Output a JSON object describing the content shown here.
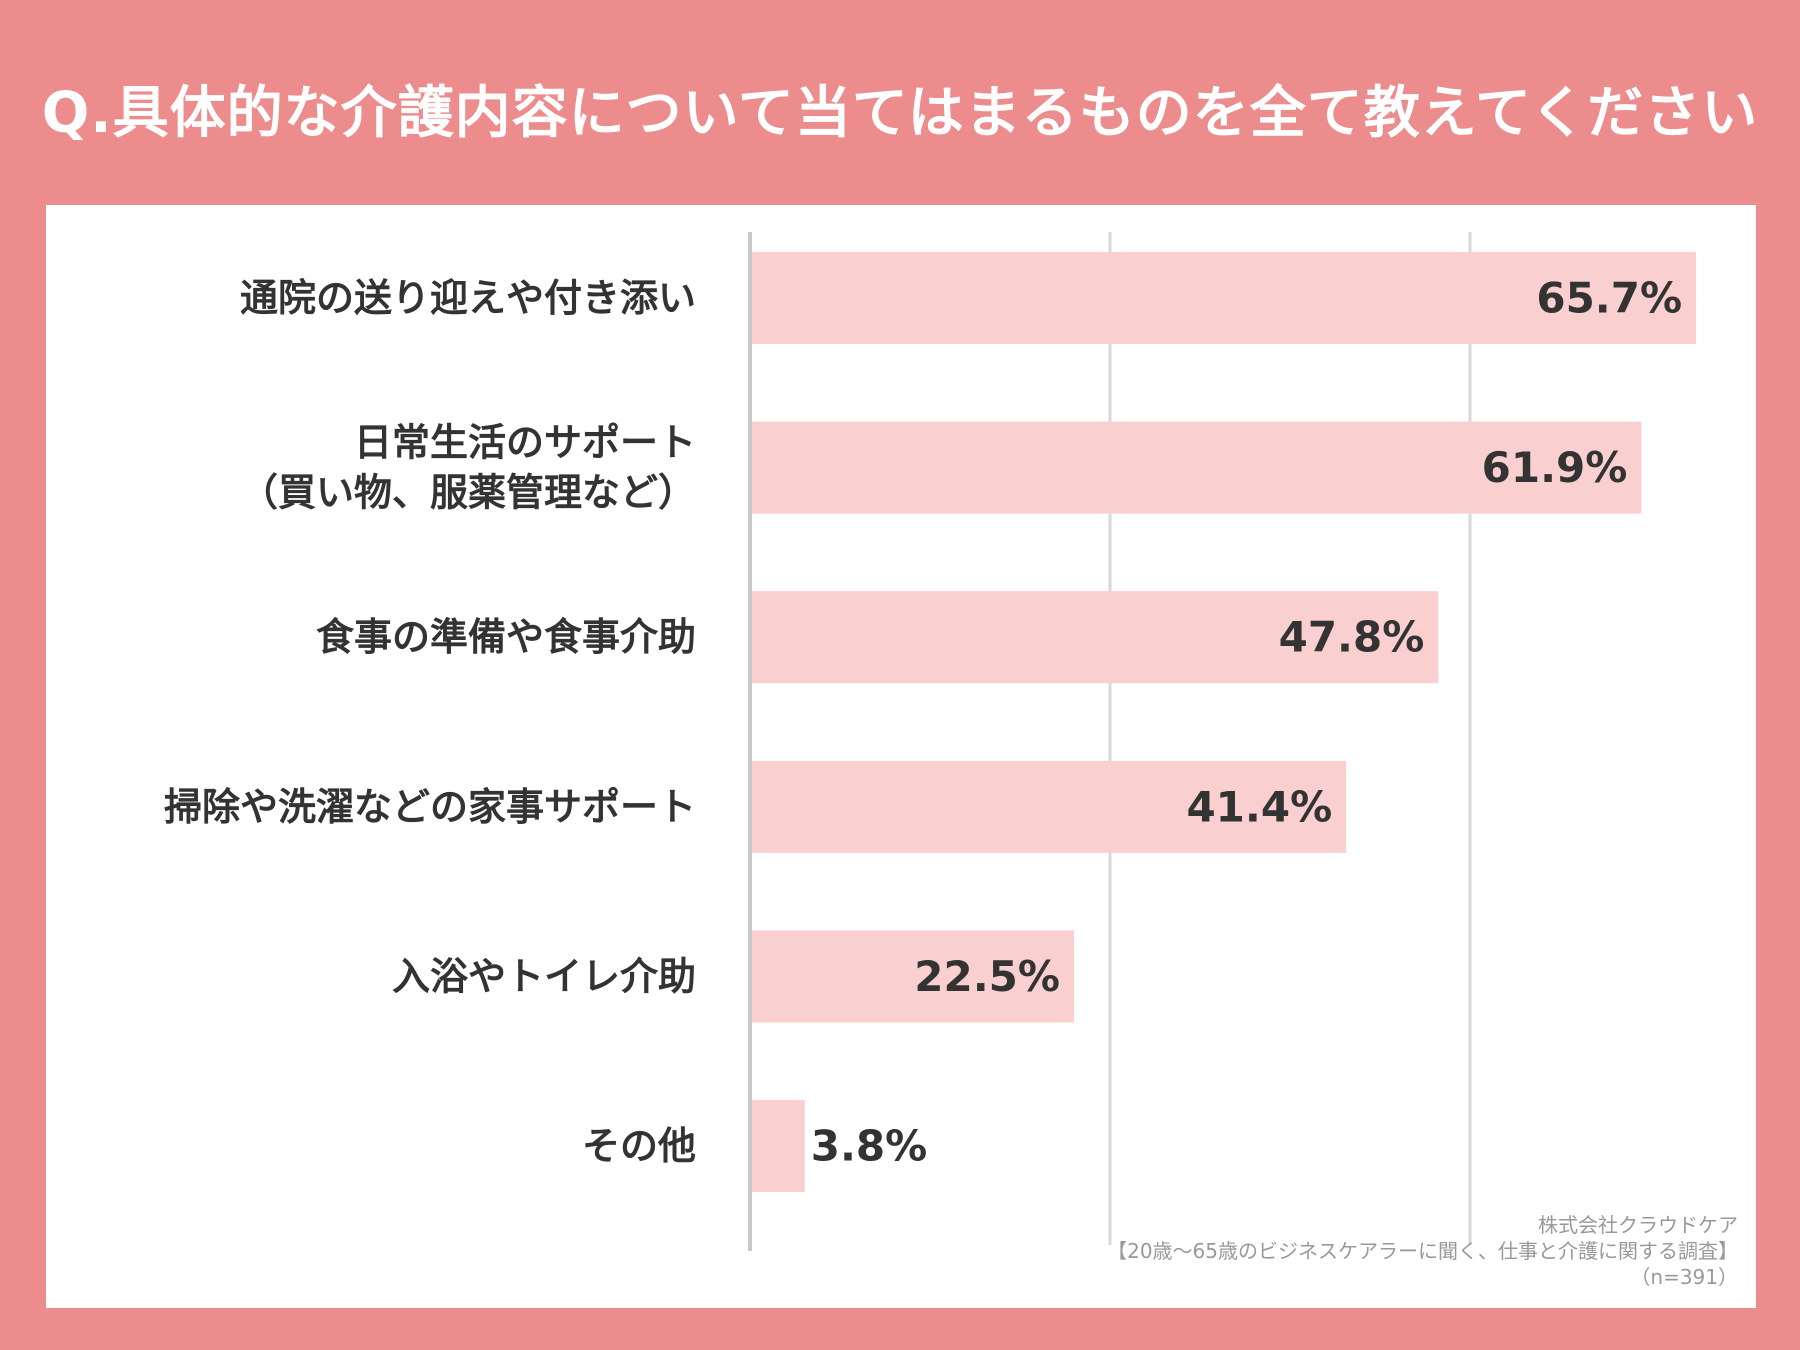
{
  "title": "Q.具体的な介護内容について当てはまるものを全て教えてください",
  "chart_data": {
    "type": "bar",
    "orientation": "horizontal",
    "title": "Q.具体的な介護内容について当てはまるものを全て教えてください",
    "categories": [
      [
        "通院の送り迎えや付き添い"
      ],
      [
        "日常生活のサポート",
        "（買い物、服薬管理など）"
      ],
      [
        "食事の準備や食事介助"
      ],
      [
        "掃除や洗濯などの家事サポート"
      ],
      [
        "入浴やトイレ介助"
      ],
      [
        "その他"
      ]
    ],
    "values": [
      65.7,
      61.9,
      47.8,
      41.4,
      22.5,
      3.8
    ],
    "value_labels": [
      "65.7%",
      "61.9%",
      "47.8%",
      "41.4%",
      "22.5%",
      "3.8%"
    ],
    "unit": "%",
    "xlim": [
      0,
      70
    ],
    "gridlines": [
      0,
      25,
      50
    ],
    "bar_color": "#f9cfcf",
    "grid_color": "#d9d9d9",
    "axis_color": "#c8c8c8",
    "label_color": "#333333"
  },
  "source": {
    "company": "株式会社クラウドケア",
    "survey": "【20歳～65歳のビジネスケアラーに聞く、仕事と介護に関する調査】",
    "sample": "（n=391）"
  }
}
